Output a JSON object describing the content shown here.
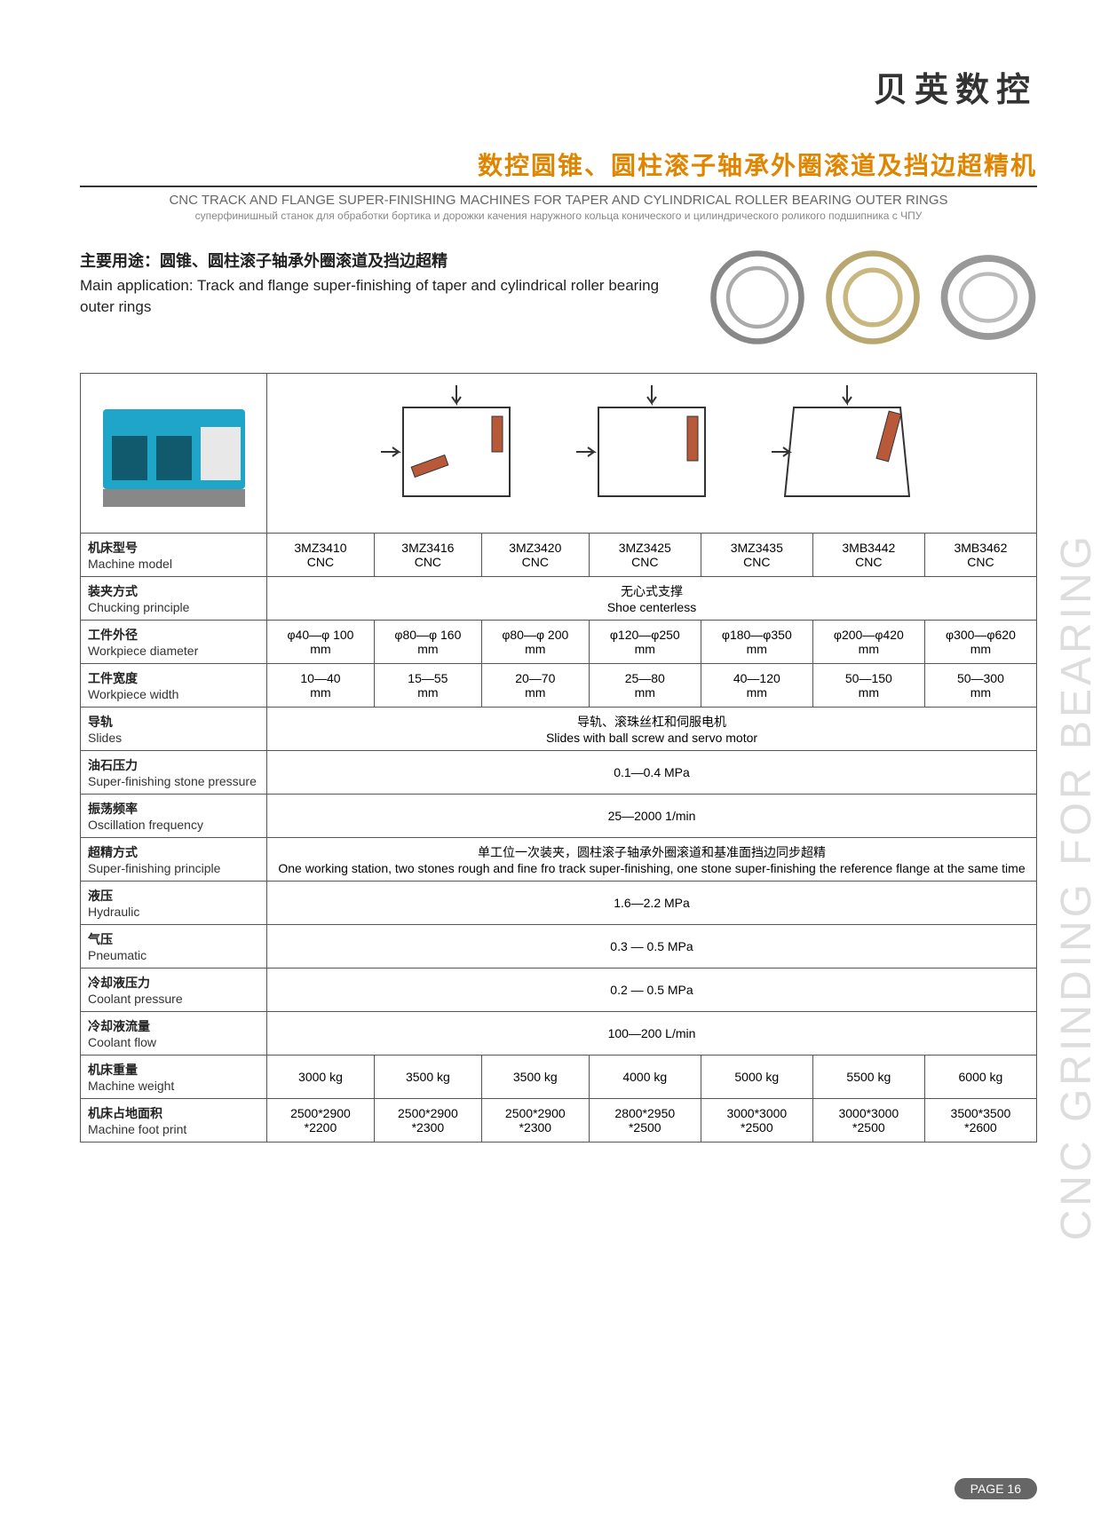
{
  "brand": "贝英数控",
  "title_cn": "数控圆锥、圆柱滚子轴承外圈滚道及挡边超精机",
  "title_en": "CNC TRACK AND FLANGE SUPER-FINISHING MACHINES FOR TAPER AND CYLINDRICAL ROLLER BEARING OUTER RINGS",
  "title_ru": "суперфинишный станок для обработки бортика и дорожки качения наружного кольца конического и цилиндрического роликого подшипника с ЧПУ",
  "intro_cn": "主要用途：圆锥、圆柱滚子轴承外圈滚道及挡边超精",
  "intro_en": "Main application: Track and flange super-finishing of taper and cylindrical roller bearing outer rings",
  "side_text": "CNC GRINDING FOR BEARING",
  "page_number": "PAGE 16",
  "colors": {
    "accent": "#e08500",
    "machine_blue": "#1ea5c8",
    "diagram_fill": "#b85a3a",
    "border": "#555555",
    "text": "#222222",
    "muted": "#666666",
    "side": "#dddddd"
  },
  "models": [
    "3MZ3410 CNC",
    "3MZ3416 CNC",
    "3MZ3420 CNC",
    "3MZ3425 CNC",
    "3MZ3435 CNC",
    "3MB3442 CNC",
    "3MB3462 CNC"
  ],
  "rows": [
    {
      "cn": "机床型号",
      "en": "Machine model",
      "type": "models"
    },
    {
      "cn": "装夹方式",
      "en": "Chucking principle",
      "span": "无心式支撑",
      "span_en": "Shoe centerless"
    },
    {
      "cn": "工件外径",
      "en": "Workpiece diameter",
      "vals": [
        "φ40—φ 100 mm",
        "φ80—φ 160 mm",
        "φ80—φ 200 mm",
        "φ120—φ250 mm",
        "φ180—φ350 mm",
        "φ200—φ420 mm",
        "φ300—φ620 mm"
      ]
    },
    {
      "cn": "工件宽度",
      "en": "Workpiece width",
      "vals": [
        "10—40 mm",
        "15—55 mm",
        "20—70 mm",
        "25—80 mm",
        "40—120 mm",
        "50—150 mm",
        "50—300 mm"
      ]
    },
    {
      "cn": "导轨",
      "en": "Slides",
      "span": "导轨、滚珠丝杠和伺服电机",
      "span_en": "Slides with ball screw and servo motor"
    },
    {
      "cn": "油石压力",
      "en": "Super-finishing stone pressure",
      "span": "0.1—0.4 MPa"
    },
    {
      "cn": "振荡频率",
      "en": "Oscillation frequency",
      "span": "25—2000 1/min"
    },
    {
      "cn": "超精方式",
      "en": "Super-finishing principle",
      "span": "单工位一次装夹，圆柱滚子轴承外圈滚道和基准面挡边同步超精",
      "span_en": "One working station, two stones rough and fine fro track super-finishing, one stone super-finishing the reference flange at the same time"
    },
    {
      "cn": "液压",
      "en": "Hydraulic",
      "span": "1.6—2.2 MPa"
    },
    {
      "cn": "气压",
      "en": "Pneumatic",
      "span": "0.3 — 0.5 MPa"
    },
    {
      "cn": "冷却液压力",
      "en": "Coolant pressure",
      "span": "0.2 — 0.5 MPa"
    },
    {
      "cn": "冷却液流量",
      "en": "Coolant flow",
      "span": "100—200 L/min"
    },
    {
      "cn": "机床重量",
      "en": "Machine weight",
      "vals": [
        "3000 kg",
        "3500 kg",
        "3500 kg",
        "4000 kg",
        "5000 kg",
        "5500 kg",
        "6000 kg"
      ]
    },
    {
      "cn": "机床占地面积",
      "en": "Machine foot print",
      "vals": [
        "2500*2900 *2200",
        "2500*2900 *2300",
        "2500*2900 *2300",
        "2800*2950 *2500",
        "3000*3000 *2500",
        "3000*3000 *2500",
        "3500*3500 *2600"
      ]
    }
  ]
}
